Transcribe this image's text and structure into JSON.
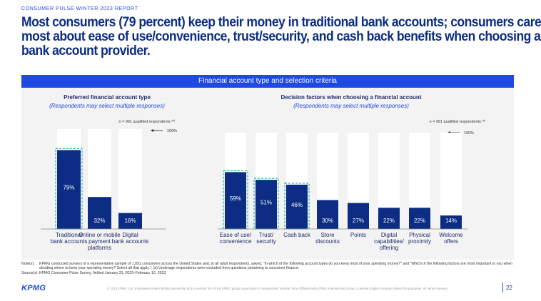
{
  "report_label": "CONSUMER PULSE WINTER 2023 REPORT",
  "headline": [
    "Most consumers (79 percent) keep their money in traditional bank accounts; consumers care",
    "most about ease of use/convenience, trust/security, and cash back benefits when choosing a",
    "bank account provider."
  ],
  "panel_header": "Financial account type and selection criteria",
  "colors": {
    "bar": "#0c2d83",
    "track": "#ffffff",
    "highlight": "#1fb5a8",
    "header": "#1e49e2",
    "panel": "#f3f3f3"
  },
  "chart_data": [
    {
      "type": "bar",
      "title": "Preferred financial account type",
      "subtitle": "(Respondents may select multiple responses)",
      "sample_note": "n = 991 qualified respondents",
      "sample_sup": "(a)",
      "reference_label": "100%",
      "ylim": [
        0,
        100
      ],
      "categories": [
        [
          "Traditional",
          "bank accounts"
        ],
        [
          "Online or mobile",
          "payment",
          "platforms"
        ],
        [
          "Digital",
          "bank accounts"
        ]
      ],
      "values": [
        79,
        32,
        16
      ],
      "value_labels": [
        "79%",
        "32%",
        "16%"
      ],
      "highlighted": [
        true,
        false,
        false
      ]
    },
    {
      "type": "bar",
      "title": "Decision factors when choosing a financial account",
      "subtitle": "(Respondents may select multiple responses)",
      "sample_note": "n = 991 qualified respondents",
      "sample_sup": "(a)",
      "reference_label": "100%",
      "ylim": [
        0,
        100
      ],
      "categories": [
        [
          "Ease of use/",
          "convenience"
        ],
        [
          "Trust/",
          "security"
        ],
        [
          "Cash back"
        ],
        [
          "Store",
          "discounts"
        ],
        [
          "Points"
        ],
        [
          "Digital",
          "capabilities/",
          "offering"
        ],
        [
          "Physical",
          "proximity"
        ],
        [
          "Welcome",
          "offers"
        ]
      ],
      "values": [
        59,
        51,
        46,
        30,
        27,
        22,
        22,
        14
      ],
      "value_labels": [
        "59%",
        "51%",
        "46%",
        "30%",
        "27%",
        "22%",
        "22%",
        "14%"
      ],
      "highlighted": [
        true,
        true,
        true,
        false,
        false,
        false,
        false,
        false
      ]
    }
  ],
  "notes": [
    {
      "key": "Note(s):",
      "text": "KPMG conducted surveys of a representative sample of 1,091 consumers across the United States and, to all adult respondents, asked, \"In which of the following account types do you keep most of your spending money?\" and \"Which of the following factors are most important to you when deciding where to keep your spending money? Select all that apply.\"; (a) Underage respondents were excluded from questions pertaining to consumer finance."
    },
    {
      "key": "Source(s):",
      "text": "KPMG Consumer Pulse Survey, fielded January 31, 2023–February 10, 2023"
    }
  ],
  "footer": {
    "logo": "KPMG",
    "legal": "© 2023 KPMG LLP, a Delaware limited liability partnership and a member firm of the KPMG global organization of independent member firms affiliated with KPMG International Limited, a private English company limited by guarantee. All rights reserved.",
    "page": "22"
  }
}
